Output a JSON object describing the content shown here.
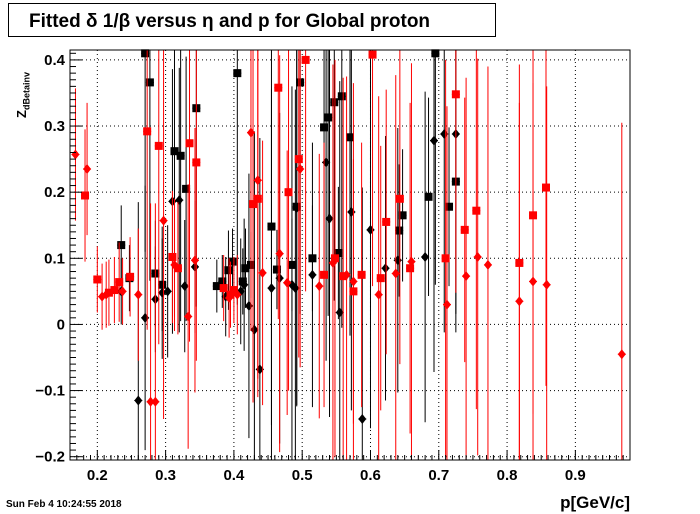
{
  "title": "Fitted δ 1/β versus η and p for Global proton",
  "timestamp": "Sun Feb  4 10:24:55 2018",
  "chart_data": {
    "type": "scatter",
    "xlabel": "p[GeV/c]",
    "ylabel_main": "Z",
    "ylabel_sub": "dBetainv",
    "xlim": [
      0.16,
      0.98
    ],
    "ylim": [
      -0.205,
      0.415
    ],
    "grid": true,
    "x_ticks": [
      0.2,
      0.3,
      0.4,
      0.5,
      0.6,
      0.7,
      0.8,
      0.9
    ],
    "x_tick_labels": [
      "0.2",
      "0.3",
      "0.4",
      "0.5",
      "0.6",
      "0.7",
      "0.8",
      "0.9"
    ],
    "y_ticks": [
      -0.2,
      -0.1,
      0,
      0.1,
      0.2,
      0.3,
      0.4
    ],
    "y_tick_labels": [
      "−0.2",
      "−0.1",
      "0",
      "0.1",
      "0.2",
      "0.3",
      "0.4"
    ],
    "series": [
      {
        "marker": "square",
        "color": "#000000",
        "points": [
          [
            0.235,
            0.12,
            0.06
          ],
          [
            0.247,
            0.07,
            0.05
          ],
          [
            0.27,
            0.41,
            0.3
          ],
          [
            0.277,
            0.366,
            0.3
          ],
          [
            0.285,
            0.077,
            0.08
          ],
          [
            0.295,
            0.06,
            0.07
          ],
          [
            0.313,
            0.262,
            0.25
          ],
          [
            0.322,
            0.255,
            0.25
          ],
          [
            0.33,
            0.205,
            0.2
          ],
          [
            0.345,
            0.327,
            0.3
          ],
          [
            0.375,
            0.058,
            0.04
          ],
          [
            0.383,
            0.065,
            0.04
          ],
          [
            0.392,
            0.082,
            0.06
          ],
          [
            0.398,
            0.095,
            0.05
          ],
          [
            0.405,
            0.38,
            0.35
          ],
          [
            0.413,
            0.065,
            0.05
          ],
          [
            0.417,
            0.085,
            0.06
          ],
          [
            0.425,
            0.09,
            0.05
          ],
          [
            0.455,
            0.148,
            0.3
          ],
          [
            0.463,
            0.083,
            0.06
          ],
          [
            0.485,
            0.09,
            0.07
          ],
          [
            0.492,
            0.178,
            0.3
          ],
          [
            0.497,
            0.366,
            0.35
          ],
          [
            0.515,
            0.1,
            0.08
          ],
          [
            0.532,
            0.298,
            0.3
          ],
          [
            0.538,
            0.313,
            0.3
          ],
          [
            0.547,
            0.336,
            0.3
          ],
          [
            0.553,
            0.108,
            0.1
          ],
          [
            0.558,
            0.345,
            0.35
          ],
          [
            0.57,
            0.283,
            0.3
          ],
          [
            0.642,
            0.142,
            0.1
          ],
          [
            0.647,
            0.165,
            0.1
          ],
          [
            0.685,
            0.193,
            0.15
          ],
          [
            0.695,
            0.41,
            0.35
          ],
          [
            0.715,
            0.178,
            0.12
          ],
          [
            0.725,
            0.216,
            0.2
          ]
        ]
      },
      {
        "marker": "diamond",
        "color": "#000000",
        "points": [
          [
            0.235,
            0.05,
            0.05
          ],
          [
            0.26,
            -0.115,
            0.3
          ],
          [
            0.27,
            0.01,
            0.2
          ],
          [
            0.285,
            0.038,
            0.08
          ],
          [
            0.295,
            0.048,
            0.1
          ],
          [
            0.303,
            0.05,
            0.1
          ],
          [
            0.31,
            0.186,
            0.2
          ],
          [
            0.32,
            0.188,
            0.2
          ],
          [
            0.328,
            0.058,
            0.1
          ],
          [
            0.343,
            0.087,
            0.1
          ],
          [
            0.388,
            0.042,
            0.06
          ],
          [
            0.41,
            0.05,
            0.08
          ],
          [
            0.415,
            0.06,
            0.1
          ],
          [
            0.422,
            0.028,
            0.2
          ],
          [
            0.43,
            -0.008,
            0.3
          ],
          [
            0.438,
            -0.068,
            0.35
          ],
          [
            0.455,
            0.055,
            0.3
          ],
          [
            0.467,
            0.07,
            0.25
          ],
          [
            0.485,
            0.06,
            0.3
          ],
          [
            0.49,
            0.055,
            0.3
          ],
          [
            0.492,
            0.176,
            0.3
          ],
          [
            0.515,
            0.075,
            0.2
          ],
          [
            0.535,
            0.245,
            0.3
          ],
          [
            0.54,
            0.16,
            0.3
          ],
          [
            0.555,
            0.018,
            0.35
          ],
          [
            0.572,
            0.17,
            0.3
          ],
          [
            0.588,
            -0.143,
            0.35
          ],
          [
            0.6,
            0.143,
            0.3
          ],
          [
            0.622,
            0.085,
            0.2
          ],
          [
            0.64,
            0.097,
            0.2
          ],
          [
            0.68,
            0.102,
            0.25
          ],
          [
            0.693,
            0.278,
            0.35
          ],
          [
            0.708,
            0.288,
            0.3
          ],
          [
            0.725,
            0.288,
            0.3
          ]
        ]
      },
      {
        "marker": "square",
        "color": "#ff0000",
        "points": [
          [
            0.182,
            0.195,
            0.1
          ],
          [
            0.2,
            0.068,
            0.05
          ],
          [
            0.217,
            0.048,
            0.05
          ],
          [
            0.225,
            0.052,
            0.05
          ],
          [
            0.232,
            0.064,
            0.06
          ],
          [
            0.248,
            0.072,
            0.06
          ],
          [
            0.273,
            0.292,
            0.3
          ],
          [
            0.29,
            0.27,
            0.3
          ],
          [
            0.31,
            0.102,
            0.1
          ],
          [
            0.318,
            0.085,
            0.1
          ],
          [
            0.335,
            0.274,
            0.3
          ],
          [
            0.345,
            0.245,
            0.3
          ],
          [
            0.385,
            0.055,
            0.05
          ],
          [
            0.395,
            0.045,
            0.05
          ],
          [
            0.4,
            0.052,
            0.05
          ],
          [
            0.428,
            0.182,
            0.3
          ],
          [
            0.435,
            0.19,
            0.3
          ],
          [
            0.465,
            0.358,
            0.35
          ],
          [
            0.48,
            0.2,
            0.3
          ],
          [
            0.495,
            0.25,
            0.3
          ],
          [
            0.505,
            0.4,
            0.35
          ],
          [
            0.532,
            0.075,
            0.2
          ],
          [
            0.548,
            0.1,
            0.3
          ],
          [
            0.56,
            0.073,
            0.3
          ],
          [
            0.575,
            0.05,
            0.2
          ],
          [
            0.587,
            0.075,
            0.2
          ],
          [
            0.603,
            0.408,
            0.35
          ],
          [
            0.615,
            0.07,
            0.2
          ],
          [
            0.623,
            0.155,
            0.2
          ],
          [
            0.643,
            0.19,
            0.25
          ],
          [
            0.658,
            0.085,
            0.25
          ],
          [
            0.71,
            0.1,
            0.3
          ],
          [
            0.725,
            0.348,
            0.3
          ],
          [
            0.738,
            0.143,
            0.2
          ],
          [
            0.755,
            0.172,
            0.3
          ],
          [
            0.818,
            0.093,
            0.3
          ],
          [
            0.838,
            0.165,
            0.3
          ],
          [
            0.857,
            0.207,
            0.3
          ]
        ]
      },
      {
        "marker": "diamond",
        "color": "#ff0000",
        "points": [
          [
            0.168,
            0.257,
            0.1
          ],
          [
            0.185,
            0.235,
            0.1
          ],
          [
            0.207,
            0.042,
            0.05
          ],
          [
            0.213,
            0.045,
            0.05
          ],
          [
            0.237,
            0.05,
            0.05
          ],
          [
            0.26,
            0.045,
            0.1
          ],
          [
            0.278,
            -0.117,
            0.3
          ],
          [
            0.285,
            -0.117,
            0.3
          ],
          [
            0.297,
            0.157,
            0.3
          ],
          [
            0.313,
            0.09,
            0.1
          ],
          [
            0.333,
            0.012,
            0.2
          ],
          [
            0.343,
            0.097,
            0.2
          ],
          [
            0.393,
            0.04,
            0.06
          ],
          [
            0.405,
            0.045,
            0.06
          ],
          [
            0.425,
            0.29,
            0.3
          ],
          [
            0.435,
            0.218,
            0.3
          ],
          [
            0.442,
            0.078,
            0.2
          ],
          [
            0.467,
            0.107,
            0.3
          ],
          [
            0.478,
            0.063,
            0.2
          ],
          [
            0.497,
            0.235,
            0.3
          ],
          [
            0.525,
            0.058,
            0.2
          ],
          [
            0.545,
            0.093,
            0.3
          ],
          [
            0.565,
            0.075,
            0.3
          ],
          [
            0.575,
            0.065,
            0.3
          ],
          [
            0.612,
            0.045,
            0.3
          ],
          [
            0.637,
            0.077,
            0.3
          ],
          [
            0.66,
            0.095,
            0.3
          ],
          [
            0.712,
            0.03,
            0.3
          ],
          [
            0.74,
            0.073,
            0.3
          ],
          [
            0.757,
            0.102,
            0.3
          ],
          [
            0.772,
            0.09,
            0.3
          ],
          [
            0.818,
            0.035,
            0.3
          ],
          [
            0.838,
            0.065,
            0.3
          ],
          [
            0.858,
            0.06,
            0.3
          ],
          [
            0.968,
            -0.045,
            0.35
          ]
        ]
      }
    ]
  }
}
